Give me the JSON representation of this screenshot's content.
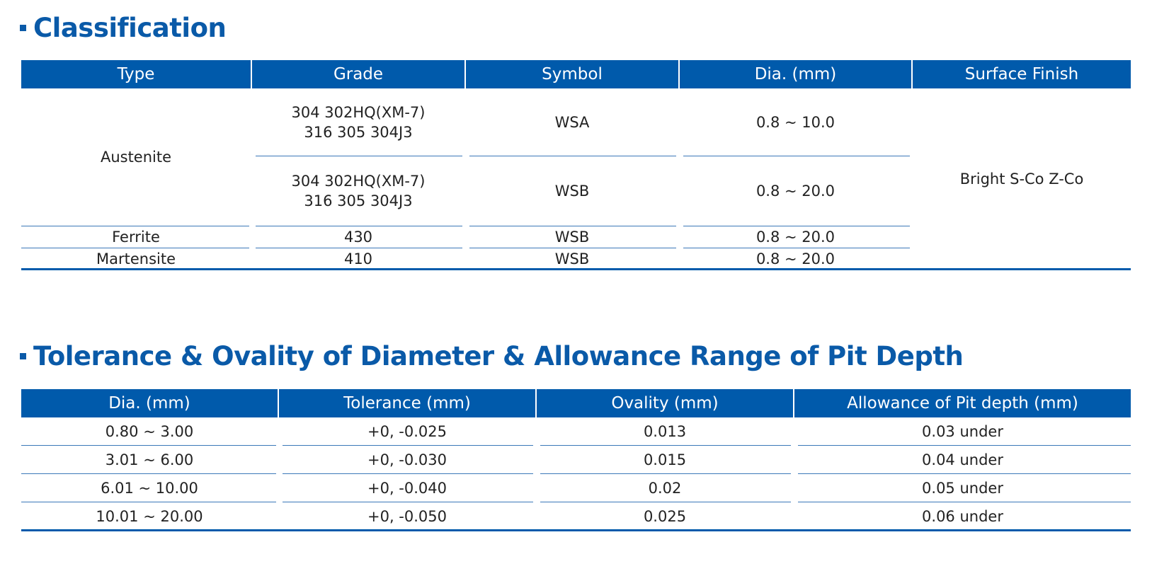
{
  "classification": {
    "title": "Classification",
    "headers": [
      "Type",
      "Grade",
      "Symbol",
      "Dia. (mm)",
      "Surface Finish"
    ],
    "rows": [
      {
        "type": "Austenite",
        "grade": "304  302HQ(XM-7)\n316  305  304J3",
        "symbol": "WSA",
        "dia": "0.8 ~ 10.0"
      },
      {
        "type": "Austenite",
        "grade": "304  302HQ(XM-7)\n316  305  304J3",
        "symbol": "WSB",
        "dia": "0.8 ~ 20.0"
      },
      {
        "type": "Ferrite",
        "grade": "430",
        "symbol": "WSB",
        "dia": "0.8 ~ 20.0"
      },
      {
        "type": "Martensite",
        "grade": "410",
        "symbol": "WSB",
        "dia": "0.8 ~ 20.0"
      }
    ],
    "surface_finish": "Bright S-Co Z-Co"
  },
  "tolerance": {
    "title": "Tolerance & Ovality of Diameter & Allowance Range of Pit Depth",
    "headers": [
      "Dia. (mm)",
      "Tolerance (mm)",
      "Ovality (mm)",
      "Allowance of Pit depth (mm)"
    ],
    "rows": [
      {
        "dia": "0.80 ~ 3.00",
        "tolerance": "+0, -0.025",
        "ovality": "0.013",
        "pit": "0.03 under"
      },
      {
        "dia": "3.01 ~ 6.00",
        "tolerance": "+0, -0.030",
        "ovality": "0.015",
        "pit": "0.04 under"
      },
      {
        "dia": "6.01 ~ 10.00",
        "tolerance": "+0, -0.040",
        "ovality": "0.02",
        "pit": "0.05 under"
      },
      {
        "dia": "10.01 ~ 20.00",
        "tolerance": "+0, -0.050",
        "ovality": "0.025",
        "pit": "0.06 under"
      }
    ]
  },
  "colors": {
    "accent": "#0a5aa8",
    "header_bg": "#005aab",
    "header_text": "#ffffff",
    "rule": "#3b78b8"
  }
}
